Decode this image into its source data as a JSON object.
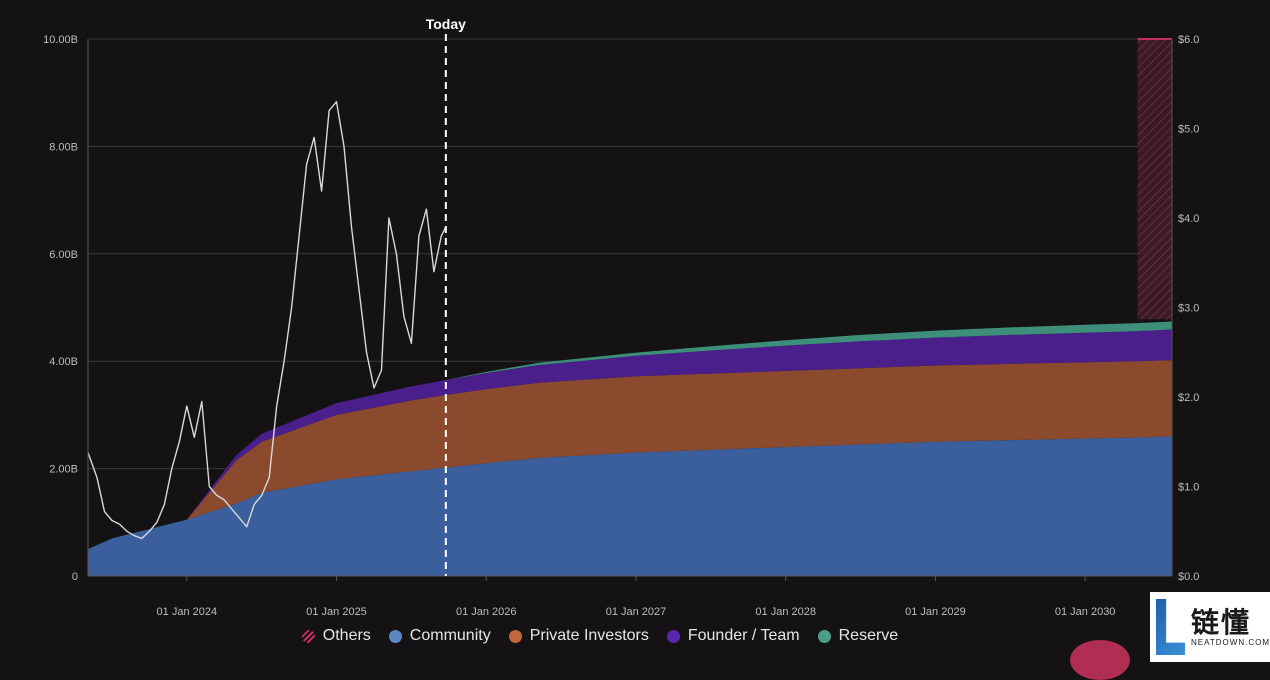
{
  "chart_data": {
    "type": "area",
    "title": "",
    "xlabel": "",
    "ylabel": "",
    "y_left_ticks": [
      "0",
      "2.00B",
      "4.00B",
      "6.00B",
      "8.00B",
      "10.00B"
    ],
    "y_right_ticks": [
      "$0.0",
      "$1.0",
      "$2.0",
      "$3.0",
      "$4.0",
      "$5.0",
      "$6.0"
    ],
    "x_ticks": [
      "01 Jan 2024",
      "01 Jan 2025",
      "01 Jan 2026",
      "01 Jan 2027",
      "01 Jan 2028",
      "01 Jan 2029",
      "01 Jan 2030"
    ],
    "ylim_left": [
      0,
      10
    ],
    "ylim_right": [
      0,
      6
    ],
    "today_label": "Today",
    "today_x": 2025.73,
    "legend_position": "bottom",
    "grid": true,
    "x": [
      2023.34,
      2023.5,
      2024.0,
      2024.33,
      2024.5,
      2025.0,
      2025.5,
      2025.73,
      2026.0,
      2026.35,
      2027.0,
      2027.5,
      2028.0,
      2028.5,
      2029.0,
      2029.5,
      2030.0,
      2030.35,
      2030.58
    ],
    "series": [
      {
        "name": "Community",
        "color": "#3a5f9c",
        "values": [
          0.5,
          0.7,
          1.05,
          1.35,
          1.55,
          1.8,
          1.95,
          2.02,
          2.1,
          2.2,
          2.3,
          2.35,
          2.4,
          2.45,
          2.5,
          2.53,
          2.56,
          2.58,
          2.6
        ]
      },
      {
        "name": "Private Investors",
        "color": "#8b4a2d",
        "values": [
          0,
          0,
          0,
          0.8,
          0.95,
          1.2,
          1.32,
          1.35,
          1.38,
          1.4,
          1.42,
          1.42,
          1.42,
          1.42,
          1.42,
          1.42,
          1.42,
          1.42,
          1.42
        ]
      },
      {
        "name": "Founder / Team",
        "color": "#4a1f8c",
        "values": [
          0,
          0,
          0,
          0.1,
          0.15,
          0.22,
          0.26,
          0.28,
          0.3,
          0.33,
          0.38,
          0.43,
          0.47,
          0.5,
          0.52,
          0.54,
          0.55,
          0.56,
          0.57
        ]
      },
      {
        "name": "Reserve",
        "color": "#3d8f7a",
        "values": [
          0,
          0,
          0,
          0,
          0,
          0,
          0,
          0,
          0.02,
          0.04,
          0.06,
          0.08,
          0.1,
          0.12,
          0.13,
          0.14,
          0.15,
          0.15,
          0.15
        ]
      }
    ],
    "others_band": {
      "name": "Others",
      "color": "#c2315b",
      "x_start": 2030.35,
      "x_end": 2030.58,
      "y_bottom": 4.78,
      "y_top": 10.0
    },
    "price_line": {
      "color": "#d9d9d9",
      "axis": "right",
      "x": [
        2023.34,
        2023.4,
        2023.45,
        2023.5,
        2023.55,
        2023.6,
        2023.65,
        2023.7,
        2023.75,
        2023.8,
        2023.85,
        2023.9,
        2023.95,
        2024.0,
        2024.05,
        2024.1,
        2024.15,
        2024.2,
        2024.25,
        2024.3,
        2024.35,
        2024.4,
        2024.45,
        2024.5,
        2024.55,
        2024.6,
        2024.65,
        2024.7,
        2024.75,
        2024.8,
        2024.85,
        2024.9,
        2024.95,
        2025.0,
        2025.05,
        2025.1,
        2025.15,
        2025.2,
        2025.25,
        2025.3,
        2025.35,
        2025.4,
        2025.45,
        2025.5,
        2025.55,
        2025.6,
        2025.65,
        2025.7,
        2025.73
      ],
      "values": [
        1.38,
        1.1,
        0.72,
        0.62,
        0.58,
        0.5,
        0.45,
        0.42,
        0.5,
        0.6,
        0.8,
        1.2,
        1.5,
        1.9,
        1.55,
        1.95,
        1.0,
        0.9,
        0.85,
        0.75,
        0.65,
        0.55,
        0.8,
        0.9,
        1.1,
        1.9,
        2.4,
        3.0,
        3.8,
        4.6,
        4.9,
        4.3,
        5.2,
        5.3,
        4.8,
        3.9,
        3.2,
        2.5,
        2.1,
        2.3,
        4.0,
        3.6,
        2.9,
        2.6,
        3.8,
        4.1,
        3.4,
        3.8,
        3.9
      ]
    }
  },
  "legend": [
    {
      "label": "Others",
      "color": "#c2315b",
      "style": "hatched"
    },
    {
      "label": "Community",
      "color": "#5b86c4",
      "style": "dot"
    },
    {
      "label": "Private Investors",
      "color": "#c0673d",
      "style": "dot"
    },
    {
      "label": "Founder / Team",
      "color": "#5a25b0",
      "style": "dot"
    },
    {
      "label": "Reserve",
      "color": "#4a9e88",
      "style": "dot"
    }
  ],
  "brand": {
    "name_cn": "链懂",
    "name_en": "NEATDOWN.COM"
  }
}
